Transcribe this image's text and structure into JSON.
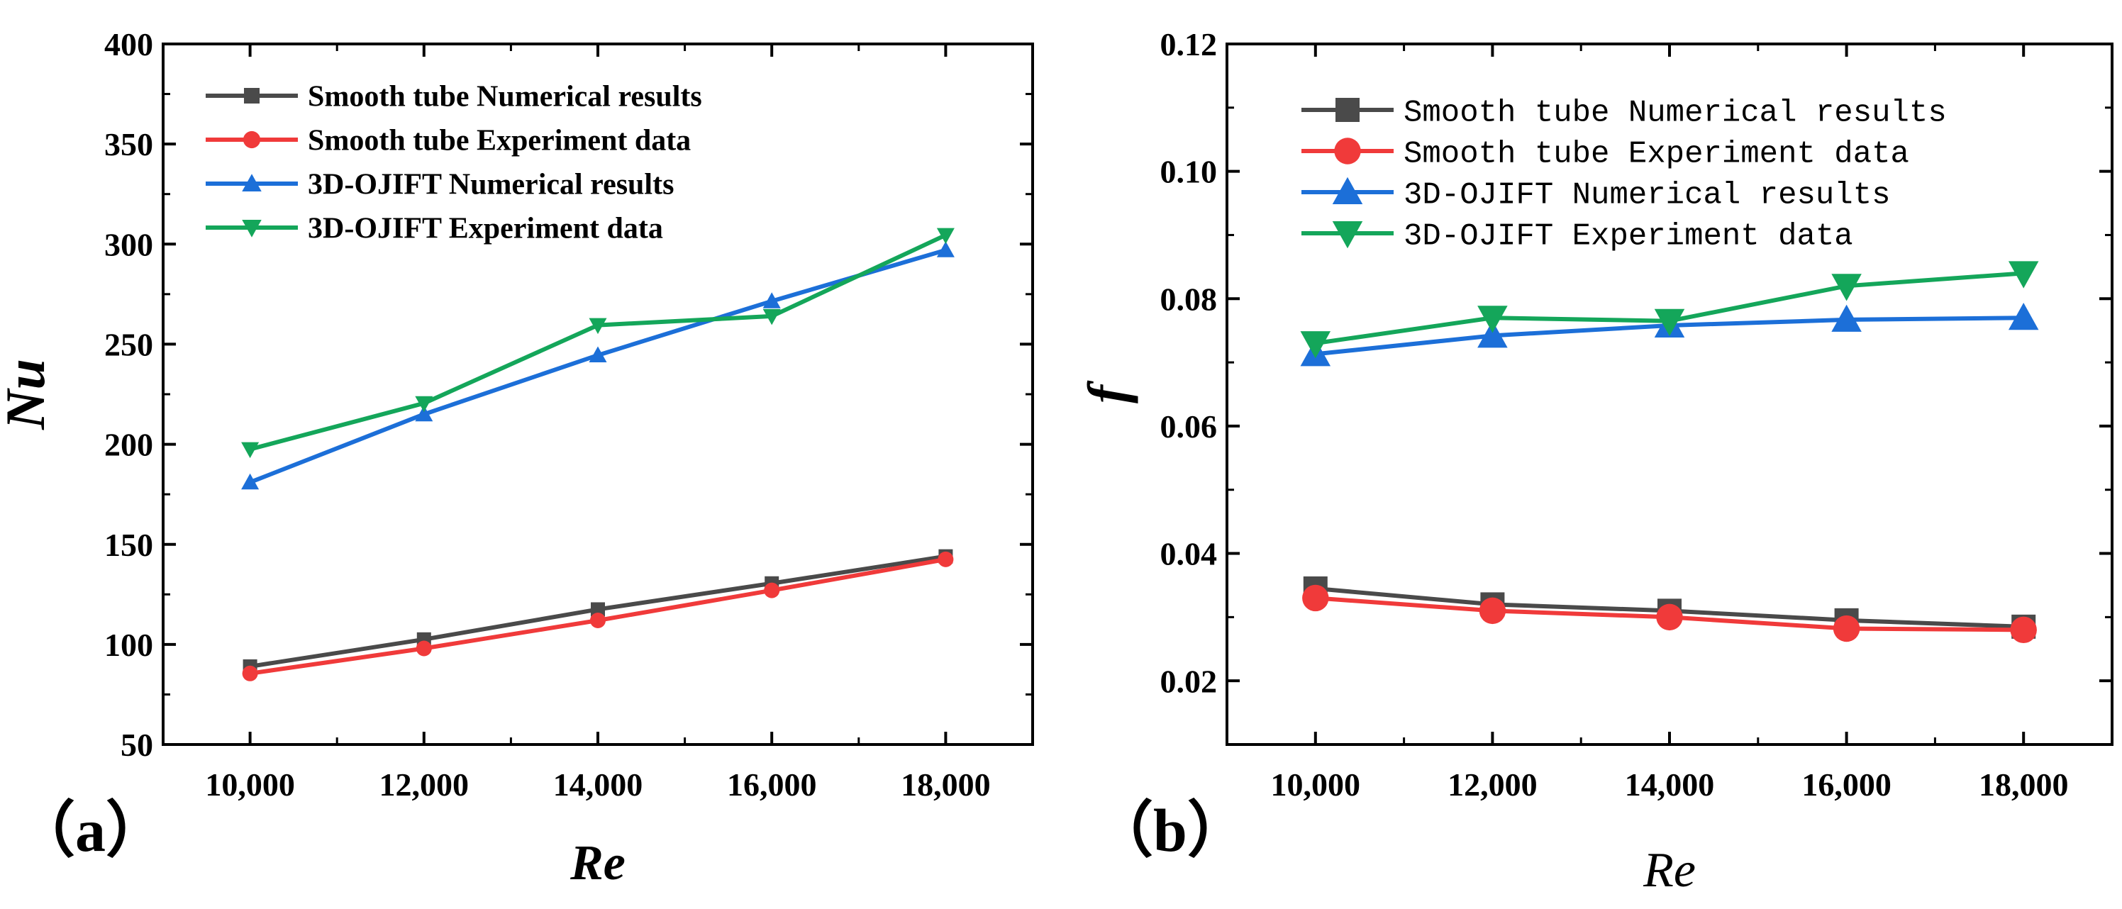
{
  "chart_data": [
    {
      "panel_label": "（a）",
      "type": "line",
      "title": "",
      "xlabel": "Re",
      "ylabel": "Nu",
      "x": [
        10000,
        12000,
        14000,
        16000,
        18000
      ],
      "xlim": [
        9000,
        19000
      ],
      "ylim": [
        50,
        400
      ],
      "xticks": [
        10000,
        12000,
        14000,
        16000,
        18000
      ],
      "xtick_labels": [
        "10,000",
        "12,000",
        "14,000",
        "16,000",
        "18,000"
      ],
      "yticks": [
        50,
        100,
        150,
        200,
        250,
        300,
        350,
        400
      ],
      "ytick_labels": [
        "50",
        "100",
        "150",
        "200",
        "250",
        "300",
        "350",
        "400"
      ],
      "legend_position": "top-left",
      "series": [
        {
          "name": "Smooth tube Numerical results",
          "color": "#4a4a4a",
          "marker": "square",
          "values": [
            89,
            102.5,
            117.5,
            130.5,
            144
          ]
        },
        {
          "name": "Smooth tube Experiment data",
          "color": "#f03a3a",
          "marker": "circle",
          "values": [
            85.5,
            98,
            112,
            127,
            142.5
          ]
        },
        {
          "name": "3D-OJIFT Numerical results",
          "color": "#1c6fd8",
          "marker": "triangle-up",
          "values": [
            181,
            215,
            244.5,
            271.5,
            297
          ]
        },
        {
          "name": "3D-OJIFT Experiment data",
          "color": "#14a65a",
          "marker": "triangle-down",
          "values": [
            197.5,
            220.5,
            259.5,
            264,
            304.5
          ]
        }
      ]
    },
    {
      "panel_label": "（b）",
      "type": "line",
      "title": "",
      "xlabel": "Re",
      "ylabel": "f",
      "x": [
        10000,
        12000,
        14000,
        16000,
        18000
      ],
      "xlim": [
        9000,
        19000
      ],
      "ylim": [
        0.01,
        0.12
      ],
      "xticks": [
        10000,
        12000,
        14000,
        16000,
        18000
      ],
      "xtick_labels": [
        "10,000",
        "12,000",
        "14,000",
        "16,000",
        "18,000"
      ],
      "yticks": [
        0.02,
        0.04,
        0.06,
        0.08,
        0.1,
        0.12
      ],
      "ytick_labels": [
        "0.02",
        "0.04",
        "0.06",
        "0.08",
        "0.10",
        "0.12"
      ],
      "legend_position": "top-left",
      "series": [
        {
          "name": "Smooth tube Numerical results",
          "color": "#4a4a4a",
          "marker": "square",
          "values": [
            0.0345,
            0.032,
            0.031,
            0.0295,
            0.0285
          ]
        },
        {
          "name": "Smooth tube Experiment data",
          "color": "#f03a3a",
          "marker": "circle",
          "values": [
            0.033,
            0.031,
            0.03,
            0.0282,
            0.028
          ]
        },
        {
          "name": "3D-OJIFT Numerical results",
          "color": "#1c6fd8",
          "marker": "triangle-up",
          "values": [
            0.0713,
            0.0742,
            0.0758,
            0.0767,
            0.077
          ]
        },
        {
          "name": "3D-OJIFT Experiment data",
          "color": "#14a65a",
          "marker": "triangle-down",
          "values": [
            0.073,
            0.077,
            0.0765,
            0.082,
            0.084
          ]
        }
      ]
    }
  ]
}
